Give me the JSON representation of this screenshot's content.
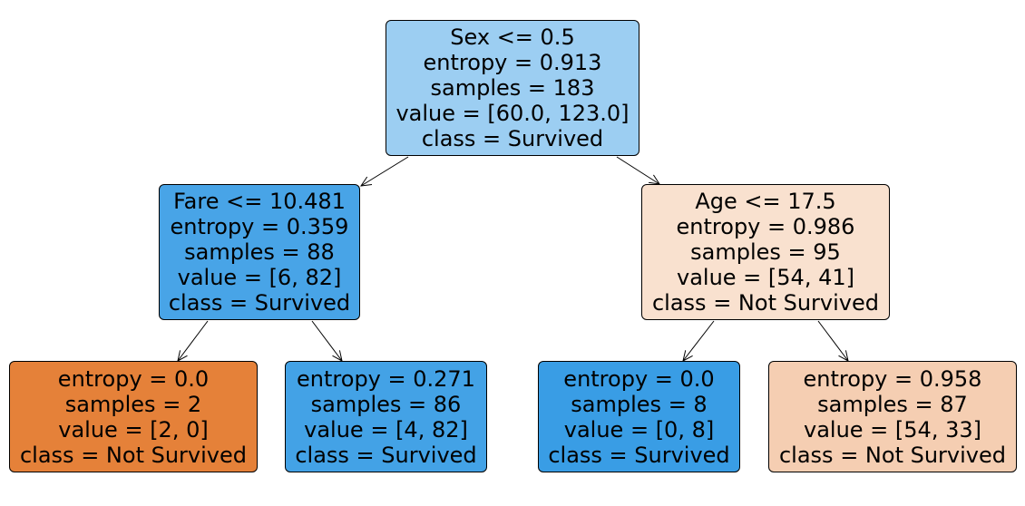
{
  "tree": {
    "nodes": [
      {
        "id": "n0",
        "split": "Sex <= 0.5",
        "entropy": "entropy = 0.913",
        "samples": "samples = 183",
        "value": "value = [60.0, 123.0]",
        "class": "class = Survived",
        "color": "#9ccef2"
      },
      {
        "id": "n1",
        "split": "Fare <= 10.481",
        "entropy": "entropy = 0.359",
        "samples": "samples = 88",
        "value": "value = [6, 82]",
        "class": "class = Survived",
        "color": "#48a4e7"
      },
      {
        "id": "n2",
        "split": "Age <= 17.5",
        "entropy": "entropy = 0.986",
        "samples": "samples = 95",
        "value": "value = [54, 41]",
        "class": "class = Not Survived",
        "color": "#f9e1cf"
      },
      {
        "id": "n3",
        "entropy": "entropy = 0.0",
        "samples": "samples = 2",
        "value": "value = [2, 0]",
        "class": "class = Not Survived",
        "color": "#e58139"
      },
      {
        "id": "n4",
        "entropy": "entropy = 0.271",
        "samples": "samples = 86",
        "value": "value = [4, 82]",
        "class": "class = Survived",
        "color": "#43a2e6"
      },
      {
        "id": "n5",
        "entropy": "entropy = 0.0",
        "samples": "samples = 8",
        "value": "value = [0, 8]",
        "class": "class = Survived",
        "color": "#399de5"
      },
      {
        "id": "n6",
        "entropy": "entropy = 0.958",
        "samples": "samples = 87",
        "value": "value = [54, 33]",
        "class": "class = Not Survived",
        "color": "#f5ceb2"
      }
    ],
    "edges": [
      {
        "from": "n0",
        "to": "n1"
      },
      {
        "from": "n0",
        "to": "n2"
      },
      {
        "from": "n1",
        "to": "n3"
      },
      {
        "from": "n1",
        "to": "n4"
      },
      {
        "from": "n2",
        "to": "n5"
      },
      {
        "from": "n2",
        "to": "n6"
      }
    ]
  }
}
